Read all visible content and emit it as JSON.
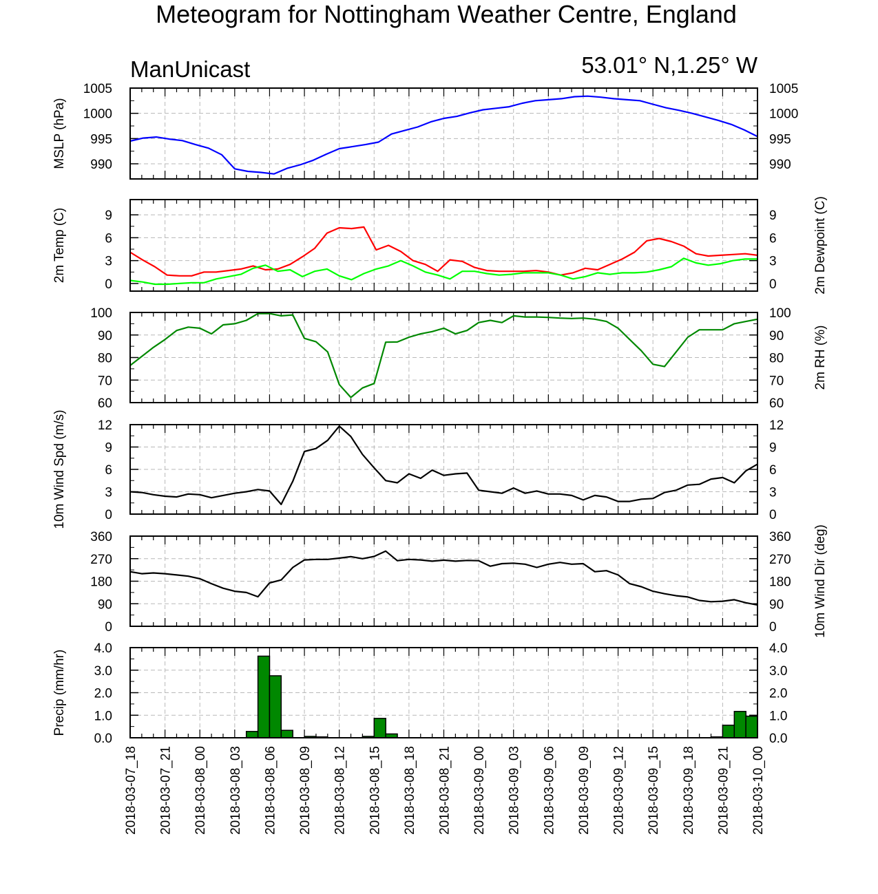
{
  "title": "Meteogram for Nottingham Weather Centre, England",
  "model_label": "ManUnicast",
  "location_label": "53.01° N,1.25° W",
  "x_tick_labels": [
    "2018-03-07_18",
    "2018-03-07_21",
    "2018-03-08_00",
    "2018-03-08_03",
    "2018-03-08_06",
    "2018-03-08_09",
    "2018-03-08_12",
    "2018-03-08_15",
    "2018-03-08_18",
    "2018-03-08_21",
    "2018-03-09_00",
    "2018-03-09_03",
    "2018-03-09_06",
    "2018-03-09_09",
    "2018-03-09_12",
    "2018-03-09_15",
    "2018-03-09_18",
    "2018-03-09_21",
    "2018-03-10_00"
  ],
  "chart_data": [
    {
      "type": "line",
      "ylabel_left": "MSLP (hPa)",
      "ylabel_right": "",
      "ylim": [
        987,
        1005
      ],
      "yticks": [
        "990",
        "995",
        "1000",
        "1005"
      ],
      "ytick_values": [
        990,
        995,
        1000,
        1005
      ],
      "grid": true,
      "series": [
        {
          "color": "#0000ff",
          "values": [
            994.5,
            995.1,
            995.3,
            994.9,
            994.6,
            993.8,
            993.1,
            991.8,
            989.0,
            988.5,
            988.3,
            988.0,
            989.1,
            989.8,
            990.7,
            991.9,
            993.0,
            993.4,
            993.8,
            994.3,
            995.9,
            996.6,
            997.3,
            998.3,
            999.0,
            999.4,
            1000.1,
            1000.7,
            1001.0,
            1001.3,
            1002.0,
            1002.5,
            1002.7,
            1002.9,
            1003.3,
            1003.4,
            1003.2,
            1002.9,
            1002.7,
            1002.5,
            1001.8,
            1001.1,
            1000.6,
            1000.0,
            999.3,
            998.6,
            997.8,
            996.7,
            995.4
          ]
        }
      ]
    },
    {
      "type": "line",
      "ylabel_left": "2m Temp (C)",
      "ylabel_right": "2m Dewpoint (C)",
      "ylim": [
        -1,
        11
      ],
      "yticks": [
        "0",
        "3",
        "6",
        "9"
      ],
      "ytick_values": [
        0,
        3,
        6,
        9
      ],
      "grid": true,
      "series": [
        {
          "color": "#ff0000",
          "values": [
            4.1,
            3.1,
            2.2,
            1.1,
            1.0,
            1.0,
            1.5,
            1.5,
            1.7,
            1.9,
            2.3,
            1.8,
            1.9,
            2.5,
            3.5,
            4.6,
            6.6,
            7.3,
            7.2,
            7.4,
            4.4,
            5.0,
            4.2,
            3.0,
            2.5,
            1.6,
            3.1,
            2.9,
            2.1,
            1.7,
            1.6,
            1.6,
            1.6,
            1.7,
            1.5,
            1.1,
            1.4,
            2.0,
            1.8,
            2.5,
            3.2,
            4.1,
            5.6,
            5.9,
            5.5,
            4.9,
            3.9,
            3.6,
            3.7,
            3.8,
            3.9,
            3.7
          ]
        },
        {
          "color": "#00ff00",
          "values": [
            0.4,
            0.2,
            -0.1,
            -0.1,
            0.0,
            0.1,
            0.1,
            0.6,
            0.9,
            1.2,
            2.0,
            2.4,
            1.6,
            1.8,
            0.9,
            1.6,
            1.9,
            1.0,
            0.5,
            1.3,
            1.9,
            2.3,
            3.0,
            2.3,
            1.5,
            1.1,
            0.6,
            1.6,
            1.6,
            1.3,
            1.1,
            1.2,
            1.4,
            1.4,
            1.4,
            1.1,
            0.6,
            0.9,
            1.4,
            1.2,
            1.4,
            1.4,
            1.5,
            1.8,
            2.2,
            3.3,
            2.7,
            2.4,
            2.6,
            3.0,
            3.2,
            3.2
          ]
        }
      ]
    },
    {
      "type": "line",
      "ylabel_left": "",
      "ylabel_right": "2m RH (%)",
      "ylim": [
        60,
        100
      ],
      "yticks": [
        "60",
        "70",
        "80",
        "90",
        "100"
      ],
      "ytick_values": [
        60,
        70,
        80,
        90,
        100
      ],
      "grid": true,
      "series": [
        {
          "color": "#008800",
          "values": [
            76.5,
            80.5,
            84.5,
            88,
            92,
            93.5,
            93,
            90.5,
            94.5,
            95,
            96.5,
            99.5,
            99.5,
            98.5,
            98.9,
            88.5,
            87,
            82.5,
            68,
            62.3,
            66.5,
            68.5,
            86.8,
            86.9,
            89,
            90.5,
            91.5,
            93,
            90.5,
            92,
            95.5,
            96.5,
            95.5,
            98.5,
            98,
            98,
            97.8,
            97.5,
            97.3,
            97.5,
            97,
            96,
            93,
            88,
            83,
            77,
            76,
            82.5,
            89,
            92.3,
            92.3,
            92.3,
            95,
            96,
            97
          ]
        }
      ]
    },
    {
      "type": "line",
      "ylabel_left": "10m Wind Spd (m/s)",
      "ylabel_right": "",
      "ylim": [
        0,
        12
      ],
      "yticks": [
        "0",
        "3",
        "6",
        "9",
        "12"
      ],
      "ytick_values": [
        0,
        3,
        6,
        9,
        12
      ],
      "grid": true,
      "series": [
        {
          "color": "#000000",
          "values": [
            3.0,
            2.9,
            2.6,
            2.4,
            2.3,
            2.7,
            2.6,
            2.2,
            2.5,
            2.8,
            3.0,
            3.3,
            3.1,
            1.3,
            4.4,
            8.4,
            8.8,
            9.9,
            11.8,
            10.4,
            8.0,
            6.2,
            4.5,
            4.2,
            5.4,
            4.8,
            5.9,
            5.2,
            5.4,
            5.5,
            3.2,
            3.0,
            2.8,
            3.5,
            2.8,
            3.1,
            2.7,
            2.7,
            2.5,
            1.9,
            2.5,
            2.3,
            1.7,
            1.7,
            2.0,
            2.1,
            2.9,
            3.2,
            3.9,
            4.0,
            4.7,
            4.9,
            4.2,
            5.8,
            6.7
          ]
        }
      ]
    },
    {
      "type": "line",
      "ylabel_left": "",
      "ylabel_right": "10m Wind Dir (deg)",
      "ylim": [
        0,
        360
      ],
      "yticks": [
        "0",
        "90",
        "180",
        "270",
        "360"
      ],
      "ytick_values": [
        0,
        90,
        180,
        270,
        360
      ],
      "grid": true,
      "series": [
        {
          "color": "#000000",
          "values": [
            218,
            210,
            213,
            210,
            205,
            200,
            190,
            170,
            152,
            140,
            135,
            118,
            173,
            185,
            235,
            265,
            267,
            267,
            272,
            278,
            270,
            279,
            300,
            262,
            267,
            265,
            260,
            264,
            260,
            263,
            262,
            240,
            250,
            252,
            248,
            235,
            248,
            255,
            248,
            250,
            218,
            222,
            205,
            170,
            158,
            140,
            130,
            122,
            117,
            103,
            98,
            100,
            106,
            94,
            85
          ]
        }
      ]
    },
    {
      "type": "bar",
      "ylabel_left": "Precip (mm/hr)",
      "ylabel_right": "",
      "ylim": [
        0,
        4
      ],
      "yticks": [
        "0.0",
        "1.0",
        "2.0",
        "3.0",
        "4.0"
      ],
      "ytick_values": [
        0,
        1,
        2,
        3,
        4
      ],
      "grid": true,
      "bar_color": "#008800",
      "bars": [
        {
          "hour": 10.5,
          "value": 0.28
        },
        {
          "hour": 11.5,
          "value": 3.62
        },
        {
          "hour": 12.5,
          "value": 2.75
        },
        {
          "hour": 13.5,
          "value": 0.33
        },
        {
          "hour": 15.5,
          "value": 0.06
        },
        {
          "hour": 16.5,
          "value": 0.04
        },
        {
          "hour": 20.5,
          "value": 0.06
        },
        {
          "hour": 21.5,
          "value": 0.86
        },
        {
          "hour": 22.5,
          "value": 0.17
        },
        {
          "hour": 50.5,
          "value": 0.04
        },
        {
          "hour": 51.5,
          "value": 0.56
        },
        {
          "hour": 52.5,
          "value": 1.17
        },
        {
          "hour": 53.5,
          "value": 0.96
        }
      ]
    }
  ]
}
